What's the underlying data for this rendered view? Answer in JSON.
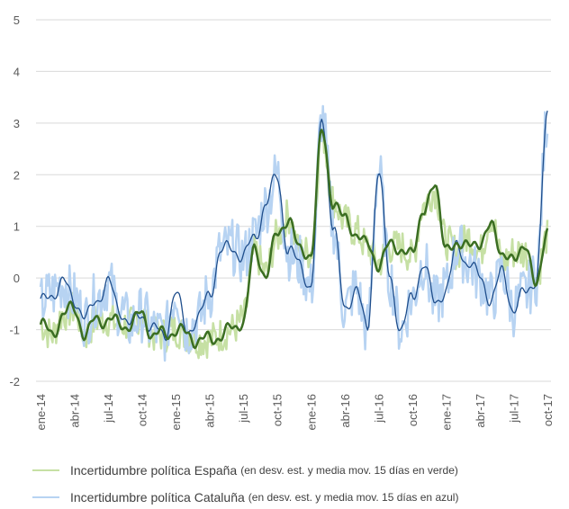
{
  "chart_data": {
    "type": "line",
    "title": "",
    "xlabel": "",
    "ylabel": "",
    "ylim": [
      -2,
      5
    ],
    "yticks": [
      "-2",
      "-1",
      "0",
      "1",
      "2",
      "3",
      "4",
      "5"
    ],
    "xticks": [
      "ene-14",
      "abr-14",
      "jul-14",
      "oct-14",
      "ene-15",
      "abr-15",
      "jul-15",
      "oct-15",
      "ene-16",
      "abr-16",
      "jul-16",
      "oct-16",
      "ene-17",
      "abr-17",
      "jul-17",
      "oct-17"
    ],
    "grid": true,
    "legend_position": "bottom",
    "colors": {
      "espana_raw": "#c6e0a4",
      "espana_ma": "#3b6e22",
      "cataluna_raw": "#b7d3f2",
      "cataluna_ma": "#1f4e8c",
      "grid": "#d9d9d9"
    },
    "legend": [
      {
        "name": "Incertidumbre política España",
        "note": "(en desv. est. y media mov. 15 días en verde)"
      },
      {
        "name": "Incertidumbre política Cataluña",
        "note": "(en desv. est. y media mov. 15 días en azul)"
      }
    ],
    "series": [
      {
        "name": "Incertidumbre política España",
        "x": [
          "2014-01",
          "2014-02",
          "2014-03",
          "2014-04",
          "2014-05",
          "2014-06",
          "2014-07",
          "2014-08",
          "2014-09",
          "2014-10",
          "2014-11",
          "2014-12",
          "2015-01",
          "2015-02",
          "2015-03",
          "2015-04",
          "2015-05",
          "2015-06",
          "2015-07",
          "2015-08",
          "2015-09",
          "2015-10",
          "2015-11",
          "2015-12",
          "2016-01",
          "2016-02",
          "2016-03",
          "2016-04",
          "2016-05",
          "2016-06",
          "2016-07",
          "2016-08",
          "2016-09",
          "2016-10",
          "2016-11",
          "2016-12",
          "2017-01",
          "2017-02",
          "2017-03",
          "2017-04",
          "2017-05",
          "2017-06",
          "2017-07",
          "2017-08",
          "2017-09",
          "2017-10"
        ],
        "values": [
          -0.9,
          -1.1,
          -0.7,
          -0.6,
          -1.1,
          -0.8,
          -0.8,
          -0.9,
          -0.9,
          -0.7,
          -1.1,
          -1.1,
          -1.0,
          -1.1,
          -1.2,
          -1.2,
          -1.1,
          -1.0,
          -0.8,
          0.5,
          0.1,
          0.8,
          1.2,
          0.5,
          0.5,
          2.8,
          1.5,
          1.1,
          0.9,
          0.6,
          0.3,
          0.6,
          0.6,
          0.4,
          1.4,
          1.7,
          0.7,
          0.5,
          0.8,
          0.5,
          1.2,
          0.3,
          0.5,
          0.5,
          0.0,
          0.8
        ]
      },
      {
        "name": "Incertidumbre política Cataluña",
        "x": [
          "2014-01",
          "2014-02",
          "2014-03",
          "2014-04",
          "2014-05",
          "2014-06",
          "2014-07",
          "2014-08",
          "2014-09",
          "2014-10",
          "2014-11",
          "2014-12",
          "2015-01",
          "2015-02",
          "2015-03",
          "2015-04",
          "2015-05",
          "2015-06",
          "2015-07",
          "2015-08",
          "2015-09",
          "2015-10",
          "2015-11",
          "2015-12",
          "2016-01",
          "2016-02",
          "2016-03",
          "2016-04",
          "2016-05",
          "2016-06",
          "2016-07",
          "2016-08",
          "2016-09",
          "2016-10",
          "2016-11",
          "2016-12",
          "2017-01",
          "2017-02",
          "2017-03",
          "2017-04",
          "2017-05",
          "2017-06",
          "2017-07",
          "2017-08",
          "2017-09",
          "2017-10"
        ],
        "values": [
          -0.5,
          -0.3,
          -0.1,
          -0.4,
          -0.8,
          -0.4,
          -0.1,
          -0.6,
          -0.9,
          -0.7,
          -1.0,
          -1.1,
          -0.3,
          -1.0,
          -0.8,
          -0.3,
          0.5,
          0.6,
          0.4,
          0.8,
          1.4,
          2.0,
          0.5,
          0.3,
          -0.2,
          3.1,
          1.0,
          -0.6,
          -0.2,
          -1.0,
          2.1,
          0.0,
          -1.0,
          -0.4,
          0.3,
          -0.5,
          -0.2,
          0.6,
          0.3,
          0.0,
          -0.4,
          0.1,
          -0.6,
          -0.3,
          0.0,
          3.1
        ]
      }
    ]
  }
}
